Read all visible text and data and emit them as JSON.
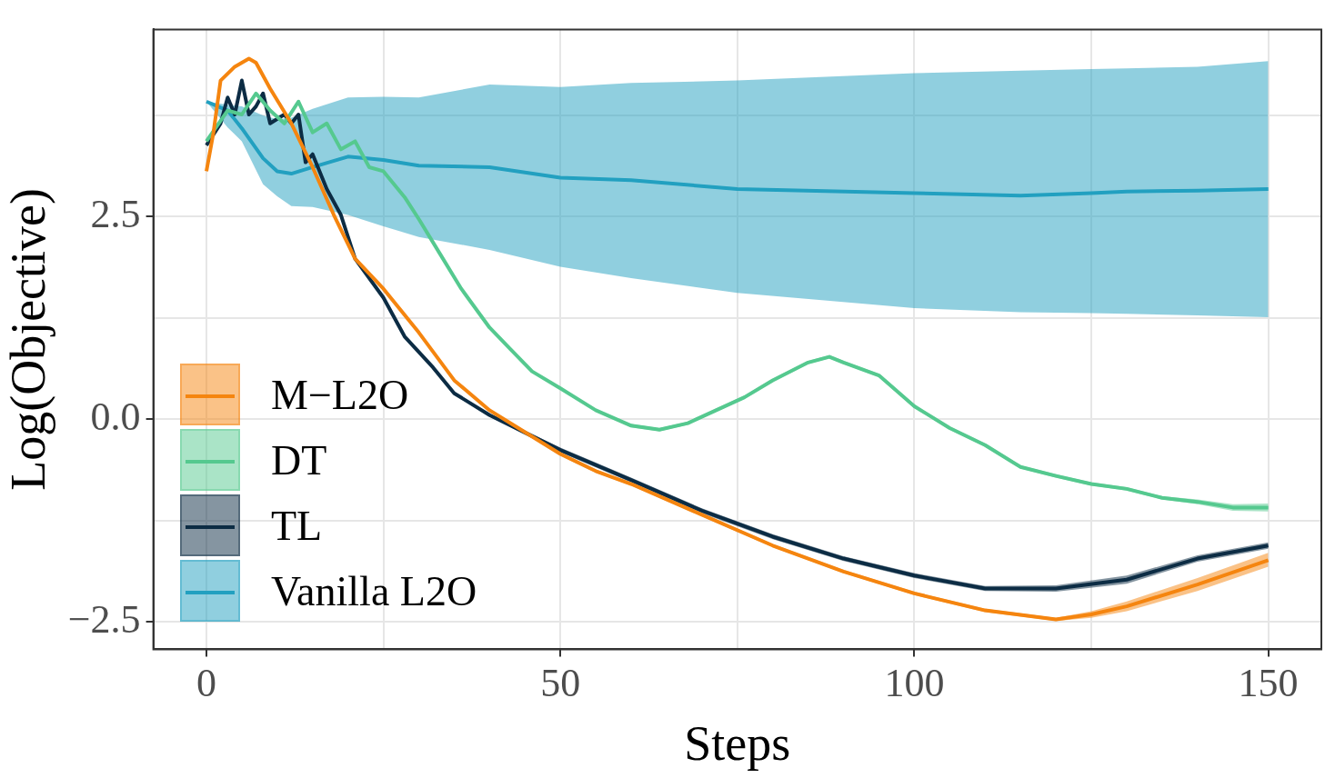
{
  "chart_data": {
    "type": "line",
    "xlabel": "Steps",
    "ylabel": "Log(Objective)",
    "xlim": [
      -7.5,
      157.5
    ],
    "ylim": [
      -2.84,
      4.81
    ],
    "xticks": [
      0,
      {
        "value": 25,
        "label": null
      },
      50,
      {
        "value": 75,
        "label": null
      },
      100,
      {
        "value": 125,
        "label": null
      },
      150
    ],
    "yticks": [
      {
        "value": -2.5,
        "label": "−2.5"
      },
      {
        "value": -1.25,
        "label": null
      },
      {
        "value": 0,
        "label": "0.0"
      },
      {
        "value": 1.25,
        "label": null
      },
      2.5,
      {
        "value": 3.75,
        "label": null
      }
    ],
    "grid": true,
    "legend": "bottom left",
    "marker": "none",
    "line_style": "solid",
    "series": [
      {
        "name": "M−L2O",
        "color": "#f5850f",
        "x": [
          0,
          1,
          2,
          4,
          6,
          7,
          9,
          12,
          15,
          18,
          21,
          25,
          30,
          35,
          40,
          45,
          50,
          55,
          60,
          70,
          80,
          90,
          100,
          110,
          120,
          125,
          130,
          140,
          150
        ],
        "values": [
          3.06,
          3.54,
          4.18,
          4.35,
          4.45,
          4.4,
          4.08,
          3.65,
          3.11,
          2.52,
          1.98,
          1.61,
          1.07,
          0.48,
          0.11,
          -0.16,
          -0.43,
          -0.64,
          -0.8,
          -1.18,
          -1.56,
          -1.88,
          -2.15,
          -2.36,
          -2.47,
          -2.41,
          -2.31,
          -2.04,
          -1.74
        ],
        "lower": [
          3.06,
          3.54,
          4.18,
          4.35,
          4.45,
          4.4,
          4.08,
          3.65,
          3.11,
          2.52,
          1.98,
          1.61,
          1.07,
          0.48,
          0.11,
          -0.16,
          -0.45,
          -0.66,
          -0.82,
          -1.2,
          -1.58,
          -1.9,
          -2.17,
          -2.38,
          -2.49,
          -2.45,
          -2.37,
          -2.12,
          -1.82
        ],
        "upper": [
          3.06,
          3.54,
          4.18,
          4.35,
          4.45,
          4.4,
          4.08,
          3.65,
          3.11,
          2.52,
          1.98,
          1.61,
          1.07,
          0.48,
          0.11,
          -0.14,
          -0.41,
          -0.62,
          -0.78,
          -1.16,
          -1.54,
          -1.86,
          -2.13,
          -2.34,
          -2.45,
          -2.37,
          -2.25,
          -1.96,
          -1.65
        ]
      },
      {
        "name": "DT",
        "color": "#55c98f",
        "x": [
          0,
          3,
          5,
          7,
          9,
          11,
          13,
          15,
          17,
          19,
          21,
          23,
          25,
          28,
          30,
          33,
          36,
          40,
          43,
          46,
          50,
          55,
          60,
          64,
          68,
          72,
          76,
          80,
          85,
          88,
          90,
          95,
          100,
          105,
          110,
          115,
          120,
          125,
          130,
          135,
          140,
          145,
          150
        ],
        "values": [
          3.43,
          3.81,
          3.76,
          4.02,
          3.81,
          3.65,
          3.92,
          3.54,
          3.65,
          3.33,
          3.43,
          3.11,
          3.06,
          2.74,
          2.47,
          2.04,
          1.61,
          1.13,
          0.86,
          0.59,
          0.38,
          0.11,
          -0.08,
          -0.13,
          -0.05,
          0.11,
          0.27,
          0.48,
          0.7,
          0.77,
          0.7,
          0.54,
          0.16,
          -0.11,
          -0.32,
          -0.59,
          -0.7,
          -0.8,
          -0.86,
          -0.97,
          -1.02,
          -1.09,
          -1.09
        ],
        "lower": [
          3.43,
          3.81,
          3.76,
          4.02,
          3.81,
          3.65,
          3.92,
          3.54,
          3.65,
          3.33,
          3.43,
          3.11,
          3.06,
          2.74,
          2.47,
          2.04,
          1.61,
          1.13,
          0.86,
          0.59,
          0.38,
          0.11,
          -0.1,
          -0.15,
          -0.07,
          0.09,
          0.25,
          0.46,
          0.68,
          0.75,
          0.68,
          0.52,
          0.14,
          -0.13,
          -0.34,
          -0.61,
          -0.72,
          -0.82,
          -0.88,
          -0.99,
          -1.05,
          -1.13,
          -1.14
        ],
        "upper": [
          3.43,
          3.81,
          3.76,
          4.02,
          3.81,
          3.65,
          3.92,
          3.54,
          3.65,
          3.33,
          3.43,
          3.11,
          3.06,
          2.74,
          2.47,
          2.04,
          1.61,
          1.13,
          0.86,
          0.59,
          0.38,
          0.11,
          -0.06,
          -0.11,
          -0.03,
          0.13,
          0.29,
          0.5,
          0.72,
          0.79,
          0.72,
          0.56,
          0.18,
          -0.09,
          -0.3,
          -0.57,
          -0.68,
          -0.78,
          -0.84,
          -0.95,
          -0.99,
          -1.05,
          -1.04
        ]
      },
      {
        "name": "TL",
        "color": "#0c2c44",
        "x": [
          0,
          2,
          3,
          4,
          5,
          6,
          7,
          8,
          9,
          11,
          12,
          13,
          14,
          15,
          17,
          19,
          21,
          25,
          28,
          32,
          35,
          40,
          50,
          60,
          70,
          80,
          90,
          100,
          110,
          120,
          130,
          140,
          150
        ],
        "values": [
          3.38,
          3.65,
          3.97,
          3.76,
          4.18,
          3.76,
          3.86,
          4.02,
          3.65,
          3.76,
          3.65,
          3.76,
          3.17,
          3.27,
          2.84,
          2.52,
          1.98,
          1.5,
          1.02,
          0.64,
          0.32,
          0.05,
          -0.38,
          -0.75,
          -1.13,
          -1.45,
          -1.72,
          -1.93,
          -2.09,
          -2.09,
          -1.98,
          -1.72,
          -1.56
        ],
        "lower": [
          3.38,
          3.65,
          3.97,
          3.76,
          4.18,
          3.76,
          3.86,
          4.02,
          3.65,
          3.76,
          3.65,
          3.76,
          3.17,
          3.27,
          2.84,
          2.52,
          1.98,
          1.5,
          1.02,
          0.64,
          0.32,
          0.03,
          -0.41,
          -0.78,
          -1.16,
          -1.48,
          -1.75,
          -1.96,
          -2.12,
          -2.13,
          -2.03,
          -1.76,
          -1.6
        ],
        "upper": [
          3.38,
          3.65,
          3.97,
          3.76,
          4.18,
          3.76,
          3.86,
          4.02,
          3.65,
          3.76,
          3.65,
          3.76,
          3.17,
          3.27,
          2.84,
          2.52,
          1.98,
          1.5,
          1.02,
          0.64,
          0.32,
          0.07,
          -0.35,
          -0.72,
          -1.1,
          -1.42,
          -1.69,
          -1.9,
          -2.06,
          -2.05,
          -1.93,
          -1.68,
          -1.52
        ]
      },
      {
        "name": "Vanilla L2O",
        "color": "#22a0c0",
        "x": [
          0,
          3,
          5,
          8,
          10,
          12,
          15,
          20,
          25,
          30,
          40,
          50,
          60,
          75,
          100,
          115,
          125,
          130,
          140,
          150
        ],
        "values": [
          3.92,
          3.81,
          3.59,
          3.22,
          3.06,
          3.03,
          3.11,
          3.24,
          3.2,
          3.13,
          3.11,
          2.98,
          2.95,
          2.84,
          2.79,
          2.76,
          2.79,
          2.81,
          2.82,
          2.84
        ],
        "lower": [
          3.92,
          3.6,
          3.43,
          2.9,
          2.75,
          2.63,
          2.62,
          2.52,
          2.38,
          2.25,
          2.09,
          1.88,
          1.74,
          1.56,
          1.37,
          1.32,
          1.31,
          1.3,
          1.28,
          1.26
        ],
        "upper": [
          3.92,
          3.88,
          3.86,
          3.75,
          3.7,
          3.72,
          3.83,
          3.97,
          3.98,
          3.97,
          4.13,
          4.1,
          4.15,
          4.18,
          4.27,
          4.3,
          4.32,
          4.33,
          4.35,
          4.42
        ]
      }
    ]
  }
}
